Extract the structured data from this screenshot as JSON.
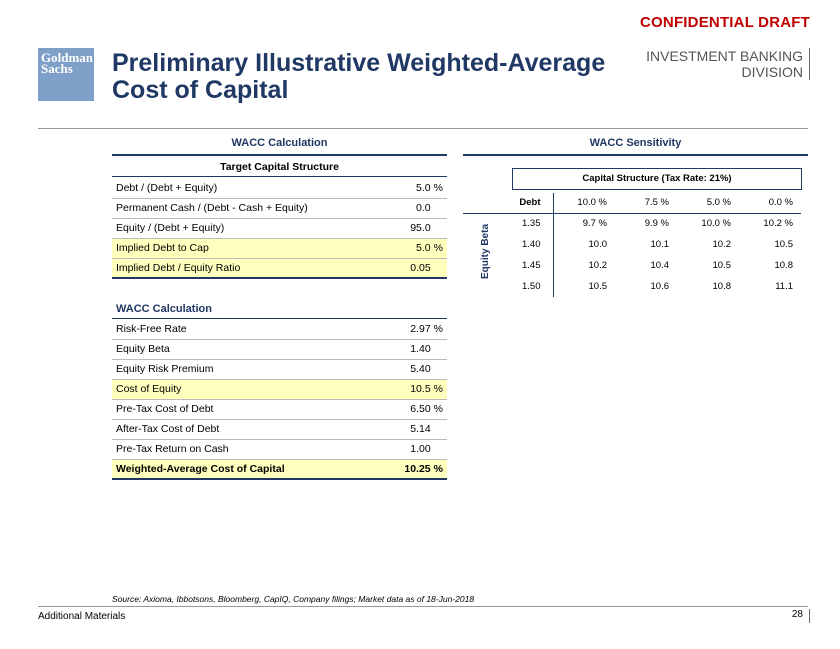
{
  "header": {
    "confidential": "CONFIDENTIAL DRAFT",
    "logo_line1": "Goldman",
    "logo_line2": "Sachs",
    "title": "Preliminary Illustrative Weighted-Average Cost of Capital",
    "division_line1": "INVESTMENT BANKING",
    "division_line2": "DIVISION"
  },
  "left_panel": {
    "heading": "WACC Calculation",
    "target_heading": "Target Capital Structure",
    "target_rows": [
      {
        "label": "Debt / (Debt + Equity)",
        "value": "5.0",
        "unit": "%"
      },
      {
        "label": "Permanent Cash / (Debt - Cash + Equity)",
        "value": "0.0",
        "unit": ""
      },
      {
        "label": "Equity / (Debt + Equity)",
        "value": "95.0",
        "unit": ""
      },
      {
        "label": "Implied Debt to Cap",
        "value": "5.0",
        "unit": "%"
      },
      {
        "label": "Implied Debt / Equity Ratio",
        "value": "0.05",
        "unit": ""
      }
    ],
    "calc_heading": "WACC Calculation",
    "calc_rows": [
      {
        "label": "Risk-Free Rate",
        "value": "2.97",
        "unit": "%"
      },
      {
        "label": "Equity Beta",
        "value": "1.40",
        "unit": ""
      },
      {
        "label": "Equity Risk Premium",
        "value": "5.40",
        "unit": ""
      },
      {
        "label": "Cost of Equity",
        "value": "10.5",
        "unit": "%"
      },
      {
        "label": "Pre-Tax Cost of Debt",
        "value": "6.50",
        "unit": "%"
      },
      {
        "label": "After-Tax Cost of Debt",
        "value": "5.14",
        "unit": ""
      },
      {
        "label": "Pre-Tax Return on Cash",
        "value": "1.00",
        "unit": ""
      },
      {
        "label": "Weighted-Average Cost of Capital",
        "value": "10.25",
        "unit": "%"
      }
    ]
  },
  "right_panel": {
    "heading": "WACC Sensitivity",
    "capital_structure_label": "Capital Structure (Tax Rate: 21%)",
    "debt_label": "Debt",
    "beta_label": "Equity Beta",
    "columns": [
      "10.0 %",
      "7.5 %",
      "5.0 %",
      "0.0 %"
    ],
    "rows": [
      {
        "beta": "1.35",
        "values": [
          "9.7 %",
          "9.9 %",
          "10.0 %",
          "10.2 %"
        ]
      },
      {
        "beta": "1.40",
        "values": [
          "10.0",
          "10.1",
          "10.2",
          "10.5"
        ]
      },
      {
        "beta": "1.45",
        "values": [
          "10.2",
          "10.4",
          "10.5",
          "10.8"
        ]
      },
      {
        "beta": "1.50",
        "values": [
          "10.5",
          "10.6",
          "10.8",
          "11.1"
        ]
      }
    ]
  },
  "footer": {
    "source": "Source: Axioma, Ibbotsons, Bloomberg, CapIQ, Company filings; Market data as of 18-Jun-2018",
    "section": "Additional Materials",
    "page": "28"
  },
  "colors": {
    "brand": "#1f3864",
    "highlight": "#ffffbe",
    "confidential": "#c00000",
    "logo_bg": "#7e9fc7"
  }
}
